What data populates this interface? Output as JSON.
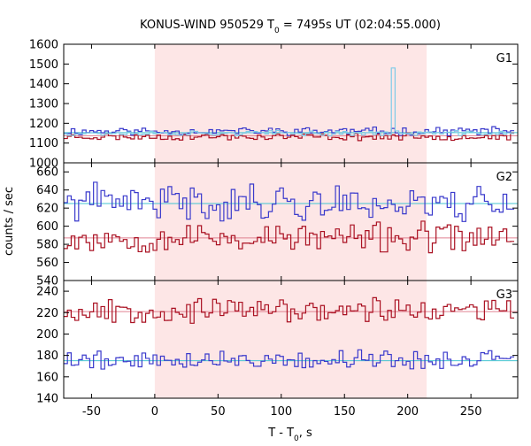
{
  "chart_data": {
    "type": "line",
    "title_prefix": "KONUS-WIND 950529 T",
    "title_sub": "0",
    "title_suffix": " = 7495s UT (02:04:55.000)",
    "xlabel_prefix": "T - T",
    "xlabel_sub": "0",
    "xlabel_suffix": ", s",
    "ylabel": "counts / sec",
    "xlim": [
      -72,
      287
    ],
    "x_ticks": [
      -50,
      0,
      50,
      100,
      150,
      200,
      250
    ],
    "x_tick_labels": [
      "-50",
      "0",
      "50",
      "100",
      "150",
      "200",
      "250"
    ],
    "highlight_interval": [
      0,
      215
    ],
    "highlight_color": "#fde6e6",
    "panels": [
      {
        "label": "G1",
        "ylim": [
          1000,
          1600
        ],
        "y_ticks": [
          1000,
          1100,
          1200,
          1300,
          1400,
          1500,
          1600
        ],
        "y_tick_labels": [
          "1000",
          "1100",
          "1200",
          "1300",
          "1400",
          "1500",
          "1600"
        ],
        "series": [
          {
            "color": "#3a3acc",
            "base": 1160,
            "amp": 16,
            "seed": 11
          },
          {
            "color": "#aa1122",
            "base": 1132,
            "amp": 14,
            "seed": 23
          },
          {
            "color": "#7ecbe8",
            "base": 1150,
            "amp": 10,
            "seed": 37,
            "spikes": [
              {
                "x": 189,
                "y": 1480
              }
            ]
          }
        ],
        "background_levels": [
          {
            "color": "#44c4d0",
            "value": 1153
          },
          {
            "color": "#e08090",
            "value": 1137
          }
        ]
      },
      {
        "label": "G2",
        "ylim": [
          540,
          670
        ],
        "y_ticks": [
          540,
          560,
          580,
          600,
          620,
          640,
          660
        ],
        "y_tick_labels": [
          "540",
          "560",
          "580",
          "600",
          "620",
          "640",
          "660"
        ],
        "series": [
          {
            "color": "#3a3acc",
            "base": 626,
            "amp": 16,
            "seed": 41
          },
          {
            "color": "#aa1122",
            "base": 587,
            "amp": 13,
            "seed": 53
          }
        ],
        "background_levels": [
          {
            "color": "#44c4d0",
            "value": 625
          },
          {
            "color": "#e08090",
            "value": 587
          }
        ]
      },
      {
        "label": "G3",
        "ylim": [
          140,
          250
        ],
        "y_ticks": [
          140,
          160,
          180,
          200,
          220,
          240
        ],
        "y_tick_labels": [
          "140",
          "160",
          "180",
          "200",
          "220",
          "240"
        ],
        "series": [
          {
            "color": "#aa1122",
            "base": 222,
            "amp": 9,
            "seed": 67
          },
          {
            "color": "#3a3acc",
            "base": 176,
            "amp": 7,
            "seed": 79
          }
        ],
        "background_levels": [
          {
            "color": "#e08090",
            "value": 221
          },
          {
            "color": "#44c4d0",
            "value": 175
          }
        ]
      }
    ],
    "bin_width_s": 2.944
  }
}
